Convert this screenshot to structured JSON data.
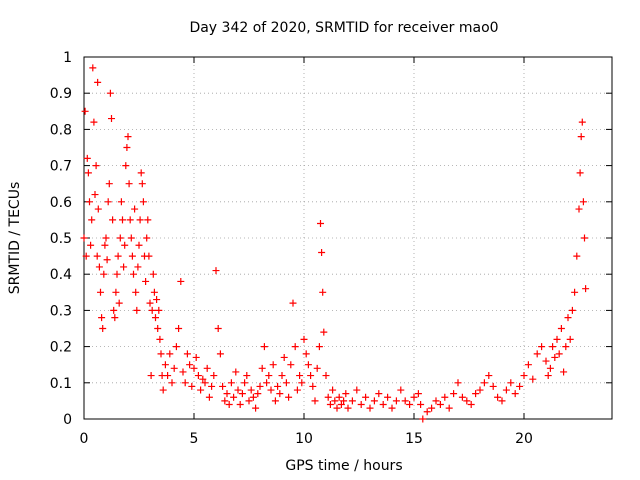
{
  "chart_data": {
    "type": "scatter",
    "title": "Day 342 of 2020, SRMTID for receiver mao0",
    "xlabel": "GPS time / hours",
    "ylabel": "SRMTID / TECUs",
    "xlim": [
      0,
      24
    ],
    "ylim": [
      0,
      1
    ],
    "x_ticks": [
      0,
      5,
      10,
      15,
      20
    ],
    "x_tick_labels": [
      "0",
      "5",
      "10",
      "15",
      "20"
    ],
    "y_ticks": [
      0,
      0.1,
      0.2,
      0.3,
      0.4,
      0.5,
      0.6,
      0.7,
      0.8,
      0.9,
      1
    ],
    "y_tick_labels": [
      "0",
      "0.1",
      "0.2",
      "0.3",
      "0.4",
      "0.5",
      "0.6",
      "0.7",
      "0.8",
      "0.9",
      "1"
    ],
    "grid": true,
    "marker": "plus",
    "series": [
      {
        "name": "SRMTID",
        "color": "#ff0000",
        "x": [
          0.0,
          0.05,
          0.1,
          0.15,
          0.2,
          0.25,
          0.3,
          0.35,
          0.4,
          0.45,
          0.5,
          0.55,
          0.6,
          0.62,
          0.65,
          0.7,
          0.75,
          0.8,
          0.85,
          0.9,
          0.95,
          1.0,
          1.05,
          1.1,
          1.15,
          1.2,
          1.25,
          1.3,
          1.35,
          1.4,
          1.45,
          1.5,
          1.55,
          1.6,
          1.65,
          1.7,
          1.75,
          1.8,
          1.85,
          1.9,
          1.95,
          2.0,
          2.05,
          2.1,
          2.15,
          2.2,
          2.25,
          2.3,
          2.35,
          2.4,
          2.45,
          2.5,
          2.55,
          2.6,
          2.65,
          2.7,
          2.75,
          2.8,
          2.85,
          2.9,
          2.95,
          3.0,
          3.05,
          3.1,
          3.15,
          3.2,
          3.25,
          3.3,
          3.35,
          3.4,
          3.45,
          3.5,
          3.55,
          3.6,
          3.7,
          3.8,
          3.9,
          4.0,
          4.1,
          4.2,
          4.3,
          4.4,
          4.5,
          4.6,
          4.7,
          4.8,
          4.9,
          5.0,
          5.1,
          5.2,
          5.3,
          5.4,
          5.5,
          5.6,
          5.7,
          5.8,
          5.9,
          6.0,
          6.1,
          6.2,
          6.3,
          6.4,
          6.5,
          6.6,
          6.7,
          6.8,
          6.9,
          7.0,
          7.1,
          7.2,
          7.3,
          7.4,
          7.5,
          7.6,
          7.7,
          7.8,
          7.9,
          8.0,
          8.1,
          8.2,
          8.3,
          8.4,
          8.5,
          8.6,
          8.7,
          8.8,
          8.9,
          9.0,
          9.1,
          9.2,
          9.3,
          9.4,
          9.5,
          9.6,
          9.7,
          9.8,
          9.9,
          10.0,
          10.1,
          10.2,
          10.3,
          10.4,
          10.5,
          10.6,
          10.7,
          10.75,
          10.8,
          10.85,
          10.9,
          11.0,
          11.1,
          11.2,
          11.3,
          11.4,
          11.5,
          11.6,
          11.7,
          11.8,
          11.9,
          12.0,
          12.2,
          12.4,
          12.6,
          12.8,
          13.0,
          13.2,
          13.4,
          13.6,
          13.8,
          14.0,
          14.2,
          14.4,
          14.6,
          14.8,
          15.0,
          15.2,
          15.3,
          15.4,
          15.6,
          15.8,
          16.0,
          16.2,
          16.4,
          16.6,
          16.8,
          17.0,
          17.2,
          17.4,
          17.6,
          17.8,
          18.0,
          18.2,
          18.4,
          18.6,
          18.8,
          19.0,
          19.2,
          19.4,
          19.6,
          19.8,
          20.0,
          20.2,
          20.4,
          20.6,
          20.8,
          21.0,
          21.1,
          21.2,
          21.3,
          21.4,
          21.5,
          21.6,
          21.7,
          21.8,
          21.9,
          22.0,
          22.1,
          22.2,
          22.3,
          22.4,
          22.5,
          22.55,
          22.6,
          22.65,
          22.7,
          22.75,
          22.8
        ],
        "y": [
          0.5,
          0.85,
          0.45,
          0.72,
          0.68,
          0.6,
          0.48,
          0.55,
          0.97,
          0.82,
          0.62,
          0.7,
          0.45,
          0.93,
          0.58,
          0.42,
          0.35,
          0.28,
          0.25,
          0.4,
          0.48,
          0.5,
          0.44,
          0.6,
          0.65,
          0.9,
          0.83,
          0.55,
          0.3,
          0.28,
          0.35,
          0.4,
          0.45,
          0.32,
          0.5,
          0.6,
          0.55,
          0.42,
          0.48,
          0.7,
          0.75,
          0.78,
          0.65,
          0.55,
          0.5,
          0.45,
          0.4,
          0.58,
          0.35,
          0.3,
          0.42,
          0.48,
          0.55,
          0.68,
          0.65,
          0.6,
          0.45,
          0.38,
          0.5,
          0.55,
          0.45,
          0.32,
          0.12,
          0.3,
          0.4,
          0.35,
          0.28,
          0.33,
          0.25,
          0.3,
          0.22,
          0.18,
          0.12,
          0.08,
          0.15,
          0.12,
          0.18,
          0.1,
          0.14,
          0.2,
          0.25,
          0.38,
          0.13,
          0.1,
          0.18,
          0.15,
          0.09,
          0.14,
          0.17,
          0.12,
          0.08,
          0.11,
          0.1,
          0.14,
          0.06,
          0.09,
          0.12,
          0.41,
          0.25,
          0.18,
          0.09,
          0.05,
          0.07,
          0.04,
          0.1,
          0.06,
          0.13,
          0.08,
          0.04,
          0.07,
          0.1,
          0.12,
          0.05,
          0.08,
          0.06,
          0.03,
          0.07,
          0.09,
          0.14,
          0.2,
          0.1,
          0.12,
          0.08,
          0.15,
          0.05,
          0.09,
          0.07,
          0.12,
          0.17,
          0.1,
          0.06,
          0.15,
          0.32,
          0.2,
          0.08,
          0.12,
          0.1,
          0.22,
          0.18,
          0.15,
          0.12,
          0.09,
          0.05,
          0.14,
          0.2,
          0.54,
          0.46,
          0.35,
          0.24,
          0.12,
          0.06,
          0.04,
          0.08,
          0.05,
          0.03,
          0.06,
          0.04,
          0.05,
          0.07,
          0.03,
          0.05,
          0.08,
          0.04,
          0.06,
          0.03,
          0.05,
          0.07,
          0.04,
          0.06,
          0.03,
          0.05,
          0.08,
          0.05,
          0.04,
          0.06,
          0.07,
          0.04,
          0.0,
          0.02,
          0.03,
          0.05,
          0.04,
          0.06,
          0.03,
          0.07,
          0.1,
          0.06,
          0.05,
          0.04,
          0.07,
          0.08,
          0.1,
          0.12,
          0.09,
          0.06,
          0.05,
          0.08,
          0.1,
          0.07,
          0.09,
          0.12,
          0.15,
          0.11,
          0.18,
          0.2,
          0.16,
          0.12,
          0.14,
          0.2,
          0.17,
          0.22,
          0.18,
          0.25,
          0.13,
          0.2,
          0.28,
          0.22,
          0.3,
          0.35,
          0.45,
          0.58,
          0.68,
          0.78,
          0.82,
          0.6,
          0.5,
          0.36
        ]
      }
    ]
  }
}
